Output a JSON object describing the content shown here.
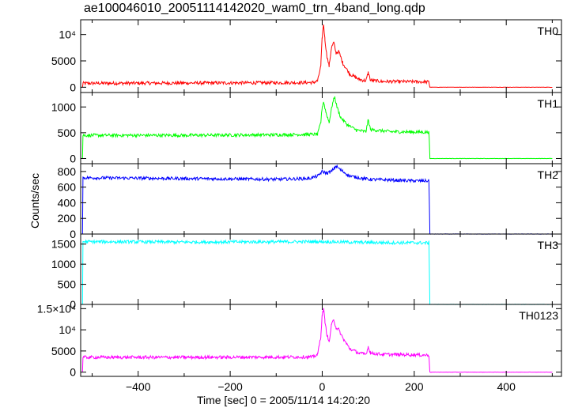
{
  "chart_data": {
    "type": "line",
    "title": "ae100046010_20051114142020_wam0_trn_4band_long.qdp",
    "xlabel": "Time [sec] 0 = 2005/11/14 14:20:20",
    "ylabel": "Counts/sec",
    "xlim": [
      -525,
      520
    ],
    "x_ticks": [
      -400,
      -200,
      0,
      200,
      400
    ],
    "grid": false,
    "legend": "none",
    "panels": [
      {
        "name": "TH0",
        "color": "#ff0000",
        "ylim": [
          -1000,
          12800
        ],
        "y_ticks": [
          {
            "v": 0,
            "label": "0"
          },
          {
            "v": 5000,
            "label": "5000"
          },
          {
            "v": 10000,
            "label": "10⁴"
          }
        ],
        "points": [
          [
            -520,
            750
          ],
          [
            -300,
            800
          ],
          [
            -100,
            850
          ],
          [
            -20,
            900
          ],
          [
            -10,
            1200
          ],
          [
            -3,
            4000
          ],
          [
            0,
            9500
          ],
          [
            3,
            12000
          ],
          [
            6,
            9000
          ],
          [
            10,
            6000
          ],
          [
            15,
            4000
          ],
          [
            20,
            7500
          ],
          [
            25,
            8500
          ],
          [
            30,
            6500
          ],
          [
            36,
            6800
          ],
          [
            45,
            4500
          ],
          [
            60,
            2500
          ],
          [
            80,
            1500
          ],
          [
            95,
            1200
          ],
          [
            100,
            2800
          ],
          [
            105,
            1300
          ],
          [
            130,
            1100
          ],
          [
            200,
            1050
          ],
          [
            232,
            1000
          ],
          [
            234,
            0
          ],
          [
            500,
            0
          ]
        ]
      },
      {
        "name": "TH1",
        "color": "#00ff00",
        "ylim": [
          -100,
          1280
        ],
        "y_ticks": [
          {
            "v": 0,
            "label": "0"
          },
          {
            "v": 500,
            "label": "500"
          },
          {
            "v": 1000,
            "label": "1000"
          }
        ],
        "points": [
          [
            -520,
            450
          ],
          [
            -300,
            450
          ],
          [
            -100,
            460
          ],
          [
            -10,
            470
          ],
          [
            -3,
            700
          ],
          [
            0,
            1000
          ],
          [
            3,
            1100
          ],
          [
            8,
            900
          ],
          [
            15,
            700
          ],
          [
            22,
            1050
          ],
          [
            27,
            1200
          ],
          [
            32,
            1000
          ],
          [
            40,
            800
          ],
          [
            55,
            650
          ],
          [
            75,
            550
          ],
          [
            95,
            520
          ],
          [
            100,
            750
          ],
          [
            105,
            560
          ],
          [
            150,
            520
          ],
          [
            230,
            510
          ],
          [
            232,
            500
          ],
          [
            234,
            0
          ],
          [
            500,
            0
          ]
        ]
      },
      {
        "name": "TH2",
        "color": "#0000ff",
        "ylim": [
          0,
          900
        ],
        "y_ticks": [
          {
            "v": 0,
            "label": "0"
          },
          {
            "v": 200,
            "label": "200"
          },
          {
            "v": 400,
            "label": "400"
          },
          {
            "v": 600,
            "label": "600"
          },
          {
            "v": 800,
            "label": "800"
          }
        ],
        "points": [
          [
            -520,
            720
          ],
          [
            -300,
            710
          ],
          [
            -100,
            700
          ],
          [
            -30,
            710
          ],
          [
            -10,
            740
          ],
          [
            0,
            800
          ],
          [
            10,
            780
          ],
          [
            20,
            800
          ],
          [
            30,
            870
          ],
          [
            40,
            820
          ],
          [
            60,
            740
          ],
          [
            100,
            700
          ],
          [
            200,
            680
          ],
          [
            232,
            680
          ],
          [
            234,
            0
          ],
          [
            500,
            0
          ]
        ]
      },
      {
        "name": "TH3",
        "color": "#00ffff",
        "ylim": [
          0,
          1750
        ],
        "y_ticks": [
          {
            "v": 0,
            "label": "0"
          },
          {
            "v": 500,
            "label": "500"
          },
          {
            "v": 1000,
            "label": "1000"
          },
          {
            "v": 1500,
            "label": "1500"
          }
        ],
        "points": [
          [
            -520,
            1560
          ],
          [
            -300,
            1550
          ],
          [
            0,
            1560
          ],
          [
            100,
            1540
          ],
          [
            232,
            1530
          ],
          [
            234,
            0
          ],
          [
            500,
            0
          ]
        ]
      },
      {
        "name": "TH0123",
        "color": "#ff00ff",
        "ylim": [
          -1000,
          16000
        ],
        "y_ticks": [
          {
            "v": 0,
            "label": "0"
          },
          {
            "v": 5000,
            "label": "5000"
          },
          {
            "v": 10000,
            "label": "10⁴"
          },
          {
            "v": 15000,
            "label": "1.5×10⁴"
          }
        ],
        "points": [
          [
            -520,
            3500
          ],
          [
            -300,
            3500
          ],
          [
            -100,
            3550
          ],
          [
            -20,
            3600
          ],
          [
            -10,
            4200
          ],
          [
            -3,
            8500
          ],
          [
            0,
            13500
          ],
          [
            3,
            15000
          ],
          [
            6,
            12000
          ],
          [
            10,
            9000
          ],
          [
            15,
            7000
          ],
          [
            20,
            11000
          ],
          [
            25,
            12500
          ],
          [
            30,
            10500
          ],
          [
            36,
            10000
          ],
          [
            45,
            8000
          ],
          [
            60,
            5500
          ],
          [
            80,
            4500
          ],
          [
            95,
            4200
          ],
          [
            100,
            6000
          ],
          [
            105,
            4500
          ],
          [
            130,
            4200
          ],
          [
            200,
            4100
          ],
          [
            232,
            4000
          ],
          [
            234,
            0
          ],
          [
            500,
            0
          ]
        ]
      }
    ]
  }
}
